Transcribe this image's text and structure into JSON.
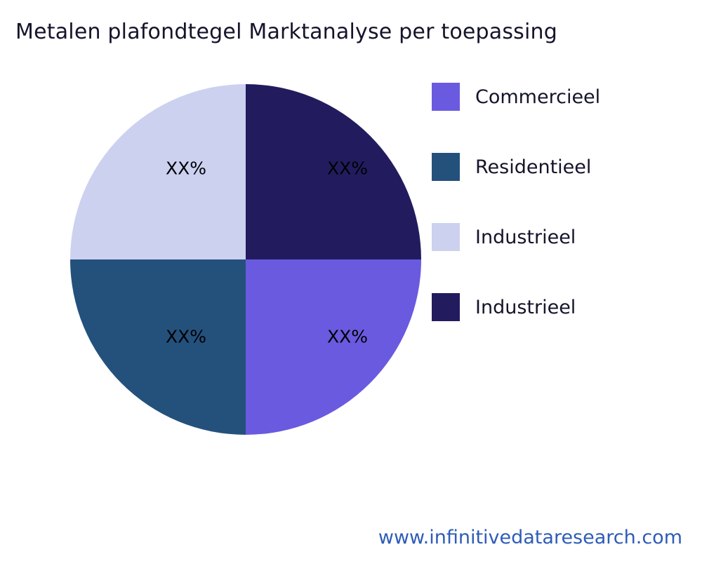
{
  "title": "Metalen plafondtegel Marktanalyse per toepassing",
  "footer": {
    "url_text": "www.infinitivedataresearch.com",
    "color": "#2e5cb8"
  },
  "chart_data": {
    "type": "pie",
    "title": "Metalen plafondtegel Marktanalyse per toepassing",
    "start_angle_deg": 0,
    "direction": "clockwise",
    "legend_position": "right",
    "slices": [
      {
        "label": "Industrieel",
        "value": 25,
        "display_label": "XX%",
        "color": "#221c5e",
        "position": "top-right"
      },
      {
        "label": "Commercieel",
        "value": 25,
        "display_label": "XX%",
        "color": "#6a5ae0",
        "position": "bottom-right"
      },
      {
        "label": "Residentieel",
        "value": 25,
        "display_label": "XX%",
        "color": "#24517c",
        "position": "bottom-left"
      },
      {
        "label": "Industrieel",
        "value": 25,
        "display_label": "XX%",
        "color": "#ccd1f0",
        "position": "top-left"
      }
    ],
    "legend": [
      {
        "label": "Commercieel",
        "color": "#6a5ae0"
      },
      {
        "label": "Residentieel",
        "color": "#24517c"
      },
      {
        "label": "Industrieel",
        "color": "#ccd1f0"
      },
      {
        "label": "Industrieel",
        "color": "#221c5e"
      }
    ]
  }
}
